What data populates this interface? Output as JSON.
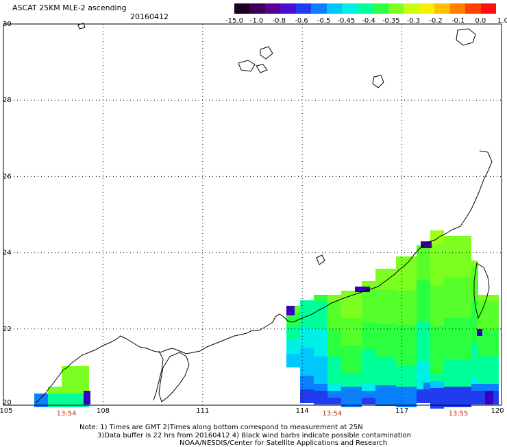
{
  "title": "ASCAT 25KM MLE-2 ascending",
  "date": "20160412",
  "colorbar": {
    "labels": [
      "-15.0",
      "-1.0",
      "-0.8",
      "-0.6",
      "-0.5",
      "-0.45",
      "-0.4",
      "-0.35",
      "-0.3",
      "-0.2",
      "-0.1",
      "0.0",
      "1.0"
    ],
    "colors": [
      "#1a0022",
      "#3a0058",
      "#5a0090",
      "#4a10d0",
      "#1f3cf0",
      "#0a80ff",
      "#00c8ff",
      "#00f0e8",
      "#00ff9a",
      "#2aff40",
      "#7cff20",
      "#c8ff10",
      "#f8f000",
      "#ffc000",
      "#ff8000",
      "#ff4000",
      "#ff1010"
    ]
  },
  "axes": {
    "x_ticks": [
      "105",
      "108",
      "111",
      "114",
      "117",
      "120"
    ],
    "y_ticks": [
      "20",
      "22",
      "24",
      "26",
      "28",
      "30"
    ],
    "x_range": [
      105,
      120
    ],
    "y_range": [
      20,
      30
    ],
    "grid": true
  },
  "pass_times": [
    {
      "lon": 106.9,
      "text": "13:54"
    },
    {
      "lon": 114.9,
      "text": "13:54"
    },
    {
      "lon": 118.7,
      "text": "13:55"
    }
  ],
  "notes": [
    "Note: 1) Times are GMT 2)Times along bottom correspond to measurement at 25N",
    "3)Data buffer is 22 hrs from 20160412 4) Black wind barbs indicate possible contamination",
    "NOAA/NESDIS/Center for Satellite Applications and Research"
  ]
}
